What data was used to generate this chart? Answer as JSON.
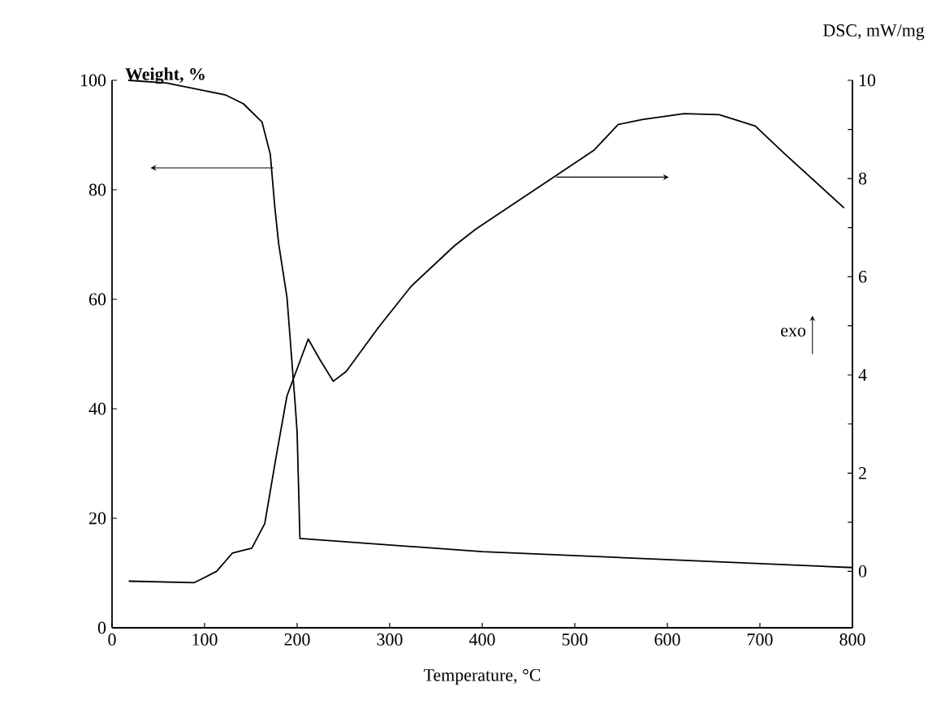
{
  "chart_data": {
    "type": "line",
    "xlabel": "Temperature, °C",
    "ylabel": "Weight, %",
    "y2label": "DSC, mW/mg",
    "xlim": [
      0,
      800
    ],
    "xticks": [
      0,
      100,
      200,
      300,
      400,
      500,
      600,
      700,
      800
    ],
    "ylim": [
      0,
      100
    ],
    "yticks": [
      0,
      20,
      40,
      60,
      80,
      100
    ],
    "y2lim": [
      -1.15,
      10
    ],
    "y2ticks": [
      0,
      2,
      4,
      6,
      8,
      10
    ],
    "grid": false,
    "annotations": [
      "exo"
    ],
    "series": [
      {
        "color": "#000000",
        "x": [
          17.5,
          59,
          123,
          142,
          162,
          171,
          176,
          180,
          189,
          198,
          200,
          203,
          400,
          800
        ],
        "values": [
          100,
          99.5,
          97.3,
          95.7,
          92.4,
          86.5,
          76.6,
          70.2,
          60.4,
          40.6,
          35.6,
          16.3,
          13.9,
          11.0
        ]
      },
      {
        "color": "#000000",
        "axis": "y2",
        "x": [
          18,
          89,
          113,
          130,
          151,
          165,
          177,
          189,
          212,
          224,
          239,
          253,
          288,
          323,
          370,
          393,
          483,
          521,
          547,
          573,
          618,
          656,
          695,
          727,
          791
        ],
        "values": [
          -0.2,
          -0.23,
          0,
          0.37,
          0.47,
          0.97,
          2.3,
          3.57,
          4.73,
          4.33,
          3.87,
          4.07,
          4.97,
          5.8,
          6.63,
          6.97,
          8.1,
          8.58,
          9.1,
          9.2,
          9.32,
          9.3,
          9.07,
          8.5,
          7.4
        ]
      }
    ]
  }
}
